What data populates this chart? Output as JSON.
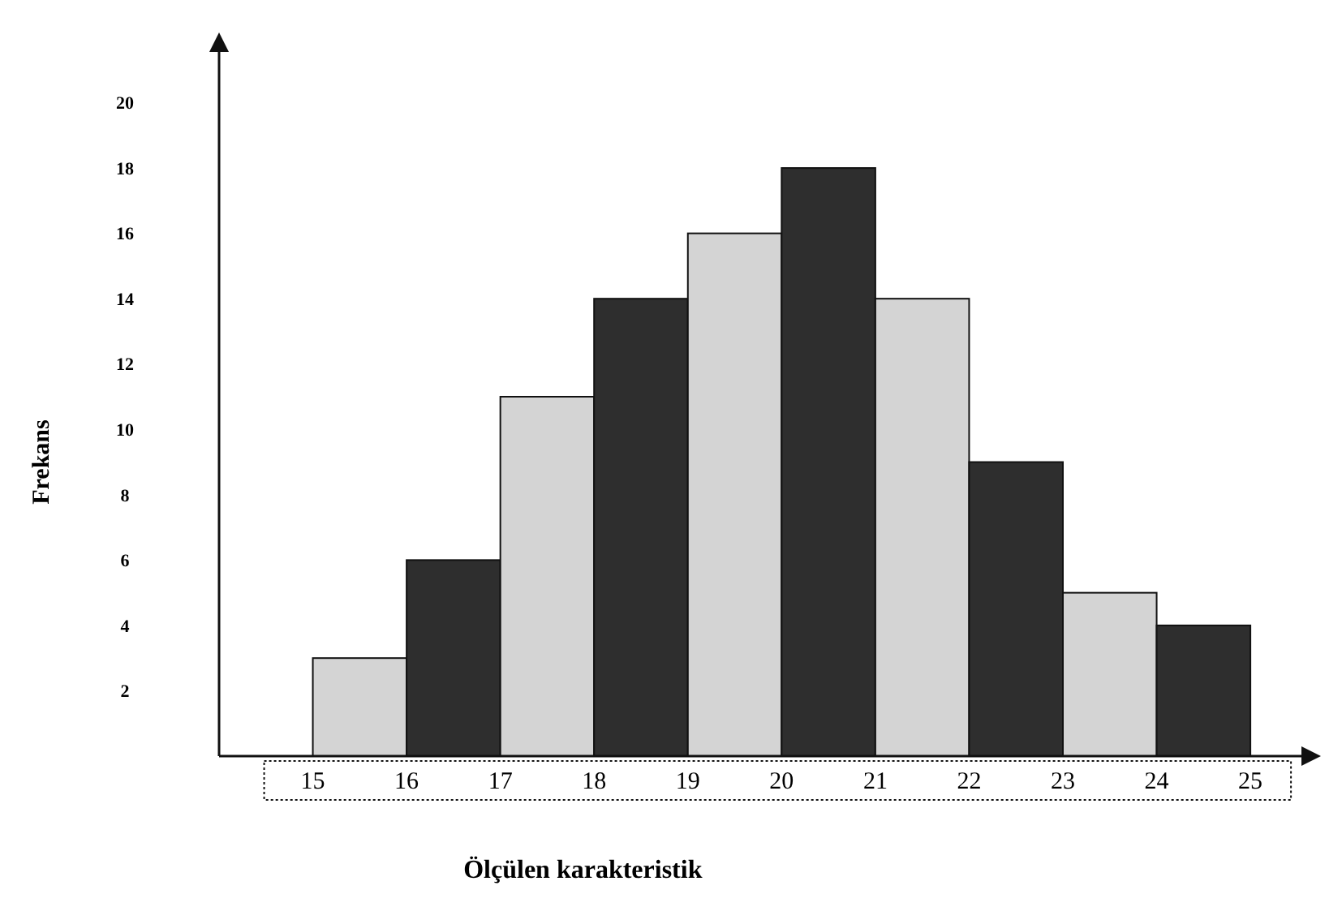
{
  "chart_data": {
    "type": "histogram",
    "xlabel": "Ölçülen karakteristik",
    "ylabel": "Frekans",
    "bins": [
      15,
      16,
      17,
      18,
      19,
      20,
      21,
      22,
      23,
      24,
      25
    ],
    "values": [
      3,
      6,
      11,
      14,
      16,
      18,
      14,
      9,
      5,
      4
    ],
    "colors": [
      "#d4d4d4",
      "#2e2e2e",
      "#d4d4d4",
      "#2e2e2e",
      "#d4d4d4",
      "#2e2e2e",
      "#d4d4d4",
      "#2e2e2e",
      "#d4d4d4",
      "#2e2e2e"
    ],
    "xlim": [
      14,
      25.7
    ],
    "xticks": [
      15,
      16,
      17,
      18,
      19,
      20,
      21,
      22,
      23,
      24,
      25
    ],
    "ylim": [
      0,
      22
    ],
    "yticks": [
      2,
      4,
      6,
      8,
      10,
      12,
      14,
      16,
      18,
      20
    ],
    "grid": false
  }
}
